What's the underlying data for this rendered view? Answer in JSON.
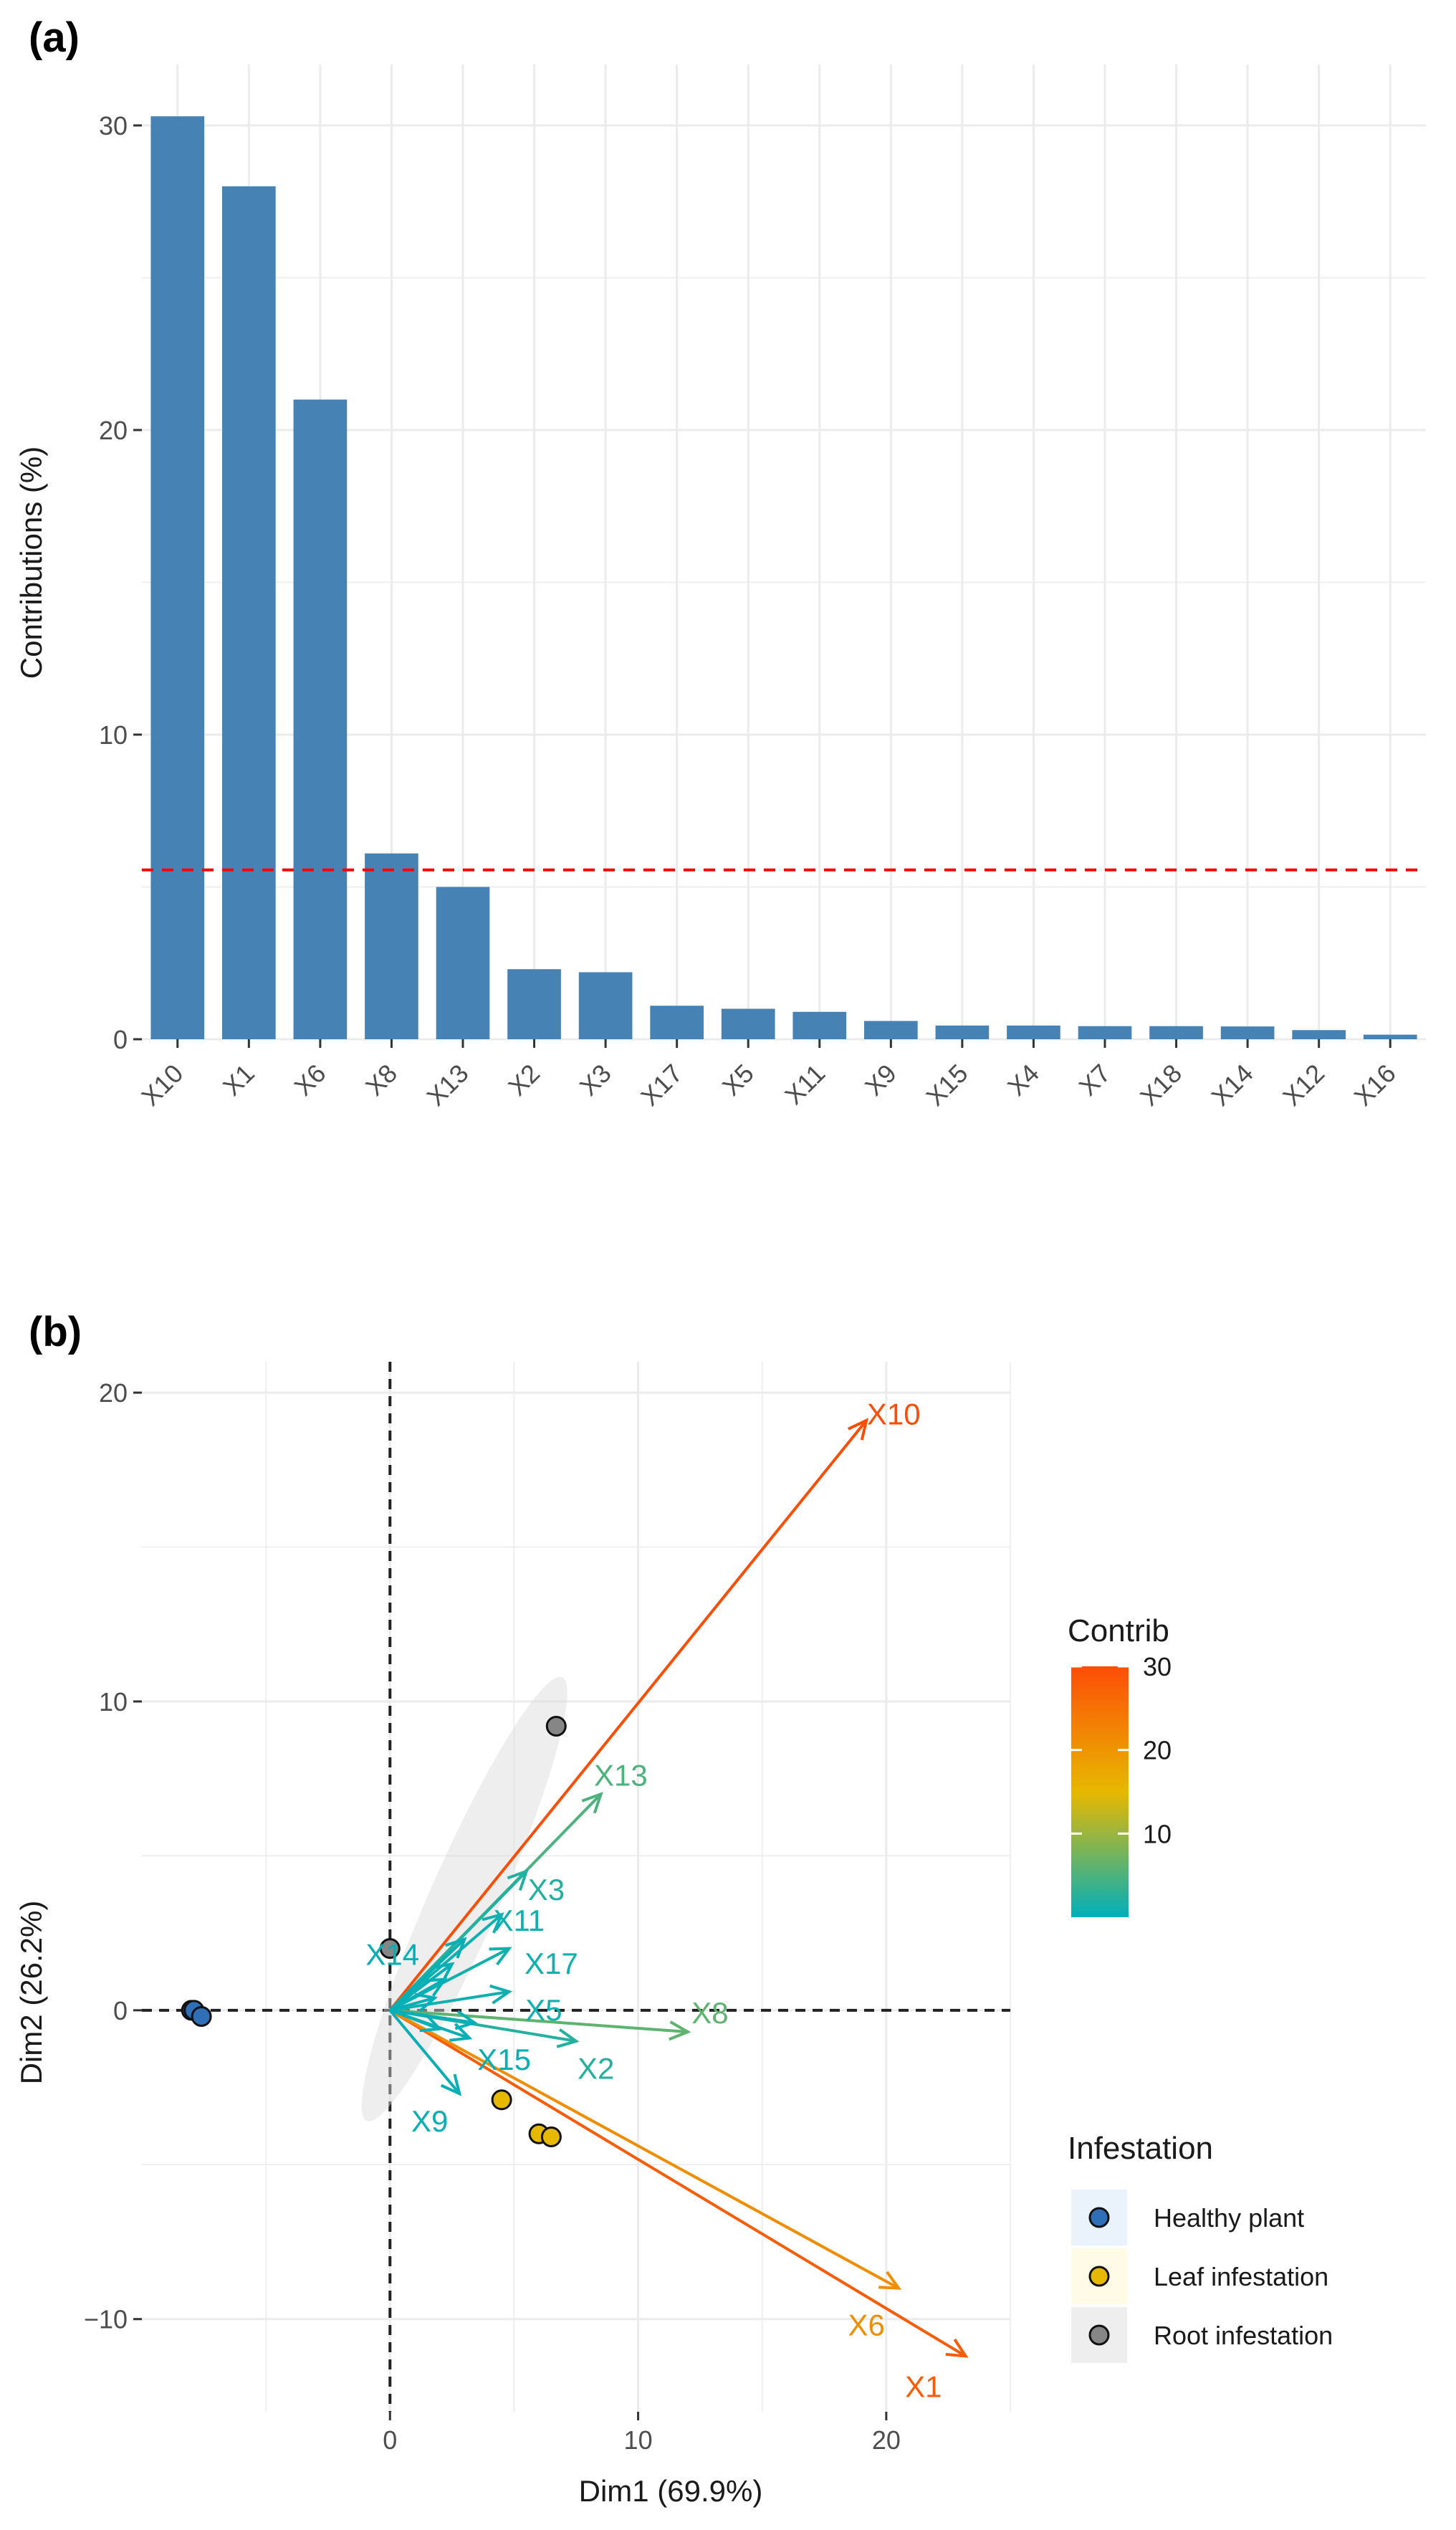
{
  "panels": {
    "a_label": "(a)",
    "b_label": "(b)"
  },
  "chart_data": [
    {
      "type": "bar",
      "panel": "(a)",
      "title": "",
      "xlabel": "",
      "ylabel": "Contributions (%)",
      "ylim": [
        0,
        32
      ],
      "yticks": [
        0,
        10,
        20,
        30
      ],
      "categories": [
        "X10",
        "X1",
        "X6",
        "X8",
        "X13",
        "X2",
        "X3",
        "X17",
        "X5",
        "X11",
        "X9",
        "X15",
        "X4",
        "X7",
        "X18",
        "X14",
        "X12",
        "X16"
      ],
      "values": [
        30.3,
        28.0,
        21.0,
        6.1,
        5.0,
        2.3,
        2.2,
        1.1,
        1.0,
        0.9,
        0.6,
        0.45,
        0.45,
        0.43,
        0.43,
        0.42,
        0.3,
        0.15
      ],
      "reference_line": 5.56,
      "bar_color": "#4682B4",
      "reference_line_color": "#FF0000",
      "grid": true
    },
    {
      "type": "scatter",
      "subtype": "pca-biplot",
      "panel": "(b)",
      "title": "",
      "xlabel": "Dim1 (69.9%)",
      "ylabel": "Dim2 (26.2%)",
      "xlim": [
        -10,
        25
      ],
      "ylim": [
        -13,
        21
      ],
      "xticks": [
        0,
        10,
        20
      ],
      "yticks": [
        -10,
        0,
        10,
        20
      ],
      "grid": true,
      "variables": [
        {
          "label": "X10",
          "x": 19.2,
          "y": 19.1,
          "contrib": 30.3
        },
        {
          "label": "X1",
          "x": 23.2,
          "y": -11.2,
          "contrib": 28.0
        },
        {
          "label": "X6",
          "x": 20.5,
          "y": -9.0,
          "contrib": 21.0
        },
        {
          "label": "X8",
          "x": 12.0,
          "y": -0.7,
          "contrib": 6.1
        },
        {
          "label": "X13",
          "x": 8.5,
          "y": 7.0,
          "contrib": 5.0
        },
        {
          "label": "X2",
          "x": 7.5,
          "y": -1.0,
          "contrib": 2.3
        },
        {
          "label": "X3",
          "x": 5.5,
          "y": 4.5,
          "contrib": 2.2
        },
        {
          "label": "X17",
          "x": 4.8,
          "y": 2.0,
          "contrib": 1.1
        },
        {
          "label": "X5",
          "x": 4.8,
          "y": 0.6,
          "contrib": 1.0
        },
        {
          "label": "X11",
          "x": 4.5,
          "y": 3.1,
          "contrib": 0.9
        },
        {
          "label": "X9",
          "x": 2.8,
          "y": -2.7,
          "contrib": 0.6
        },
        {
          "label": "X15",
          "x": 3.2,
          "y": -0.9,
          "contrib": 0.45
        },
        {
          "label": "X14",
          "x": 2.5,
          "y": 1.5,
          "contrib": 0.42
        },
        {
          "label": "",
          "x": 3.0,
          "y": 2.3,
          "contrib": 0.45
        },
        {
          "label": "",
          "x": 2.2,
          "y": 1.0,
          "contrib": 0.43
        },
        {
          "label": "",
          "x": 2.0,
          "y": -0.6,
          "contrib": 0.43
        },
        {
          "label": "",
          "x": 3.4,
          "y": -0.4,
          "contrib": 0.3
        },
        {
          "label": "",
          "x": 1.8,
          "y": 0.4,
          "contrib": 0.15
        }
      ],
      "label_positions": {
        "X10": [
          20.3,
          19.3
        ],
        "X1": [
          21.5,
          -12.2
        ],
        "X6": [
          19.2,
          -10.2
        ],
        "X8": [
          12.9,
          -0.1
        ],
        "X13": [
          9.3,
          7.6
        ],
        "X2": [
          8.3,
          -1.9
        ],
        "X3": [
          6.3,
          3.9
        ],
        "X17": [
          6.5,
          1.5
        ],
        "X5": [
          6.2,
          0.0
        ],
        "X11": [
          5.2,
          2.9
        ],
        "X9": [
          1.6,
          -3.6
        ],
        "X15": [
          4.6,
          -1.6
        ],
        "X14": [
          0.1,
          1.8
        ]
      },
      "individuals": [
        {
          "group": "Healthy plant",
          "x": -8.0,
          "y": 0.0
        },
        {
          "group": "Healthy plant",
          "x": -7.9,
          "y": 0.0
        },
        {
          "group": "Healthy plant",
          "x": -7.6,
          "y": -0.2
        },
        {
          "group": "Leaf infestation",
          "x": 4.5,
          "y": -2.9
        },
        {
          "group": "Leaf infestation",
          "x": 6.0,
          "y": -4.0
        },
        {
          "group": "Leaf infestation",
          "x": 6.5,
          "y": -4.1
        },
        {
          "group": "Root infestation",
          "x": 6.7,
          "y": 9.2
        },
        {
          "group": "Root infestation",
          "x": 0.0,
          "y": 2.0
        }
      ],
      "ellipse": {
        "group": "Root infestation",
        "cx": 3.0,
        "cy": 3.6,
        "rx": 8.2,
        "ry": 1.35,
        "angle_deg": 61
      },
      "legend": {
        "contrib_title": "Contrib",
        "contrib_ticks": [
          10,
          20,
          30
        ],
        "contrib_range": [
          0,
          30
        ],
        "gradient_colors": [
          "#00AFBB",
          "#E7B800",
          "#FC4E07"
        ],
        "group_title": "Infestation",
        "groups": [
          {
            "name": "Healthy plant",
            "color": "#2E6FB7",
            "bg": "#EAF3FB"
          },
          {
            "name": "Leaf infestation",
            "color": "#E7B800",
            "bg": "#FFFBE6"
          },
          {
            "name": "Root infestation",
            "color": "#868686",
            "bg": "#EEEEEE"
          }
        ],
        "placement": "right"
      }
    }
  ]
}
